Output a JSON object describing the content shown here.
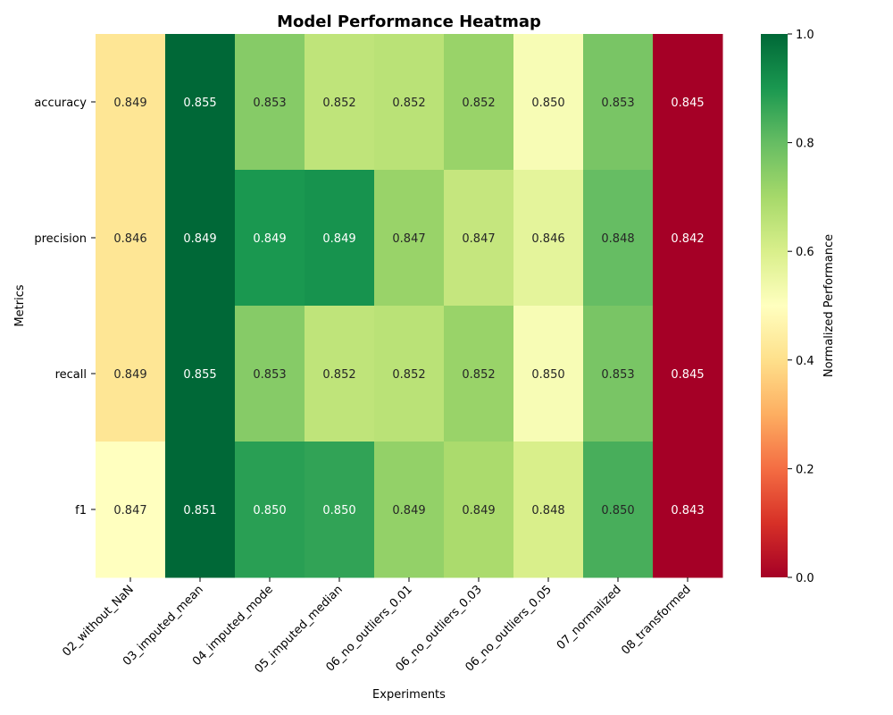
{
  "chart_data": {
    "type": "heatmap",
    "title": "Model Performance Heatmap",
    "xlabel": "Experiments",
    "ylabel": "Metrics",
    "x": [
      "02_without_NaN",
      "03_imputed_mean",
      "04_imputed_mode",
      "05_imputed_median",
      "06_no_outliers_0.01",
      "06_no_outliers_0.03",
      "06_no_outliers_0.05",
      "07_normalized",
      "08_transformed"
    ],
    "y": [
      "accuracy",
      "precision",
      "recall",
      "f1"
    ],
    "values": [
      [
        0.849,
        0.855,
        0.853,
        0.852,
        0.852,
        0.852,
        0.85,
        0.853,
        0.845
      ],
      [
        0.846,
        0.849,
        0.849,
        0.849,
        0.847,
        0.847,
        0.846,
        0.848,
        0.842
      ],
      [
        0.849,
        0.855,
        0.853,
        0.852,
        0.852,
        0.852,
        0.85,
        0.853,
        0.845
      ],
      [
        0.847,
        0.851,
        0.85,
        0.85,
        0.849,
        0.849,
        0.848,
        0.85,
        0.843
      ]
    ],
    "normalized": [
      [
        0.42,
        1.0,
        0.75,
        0.65,
        0.66,
        0.72,
        0.52,
        0.77,
        0.0
      ],
      [
        0.42,
        1.0,
        0.9,
        0.91,
        0.72,
        0.64,
        0.57,
        0.8,
        0.0
      ],
      [
        0.42,
        1.0,
        0.75,
        0.65,
        0.66,
        0.72,
        0.52,
        0.77,
        0.0
      ],
      [
        0.5,
        1.0,
        0.88,
        0.87,
        0.73,
        0.69,
        0.6,
        0.84,
        0.0
      ]
    ],
    "colormap": "RdYlGn",
    "colorbar": {
      "label": "Normalized Performance",
      "range": [
        0.0,
        1.0
      ],
      "ticks": [
        "0.0",
        "0.2",
        "0.4",
        "0.6",
        "0.8",
        "1.0"
      ]
    },
    "annotations": true
  }
}
